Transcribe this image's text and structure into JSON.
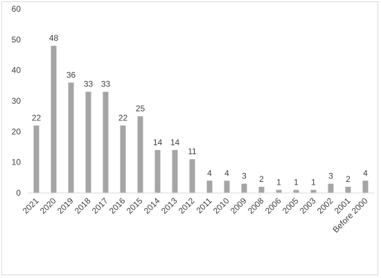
{
  "chart_data": {
    "type": "bar",
    "categories": [
      "2021",
      "2020",
      "2019",
      "2018",
      "2017",
      "2016",
      "2015",
      "2014",
      "2013",
      "2012",
      "2011",
      "2010",
      "2009",
      "2008",
      "2006",
      "2005",
      "2003",
      "2002",
      "2001",
      "Before 2000"
    ],
    "values": [
      22,
      48,
      36,
      33,
      33,
      22,
      25,
      14,
      14,
      11,
      4,
      4,
      3,
      2,
      1,
      1,
      1,
      3,
      2,
      4
    ],
    "ylim": [
      0,
      60
    ],
    "yticks": [
      0,
      10,
      20,
      30,
      40,
      50,
      60
    ],
    "title": "",
    "xlabel": "",
    "ylabel": "",
    "grid": false,
    "legend": "none",
    "bar_color": "#a5a5a5",
    "axis_color": "#d9d9d9",
    "text_color": "#404040"
  }
}
